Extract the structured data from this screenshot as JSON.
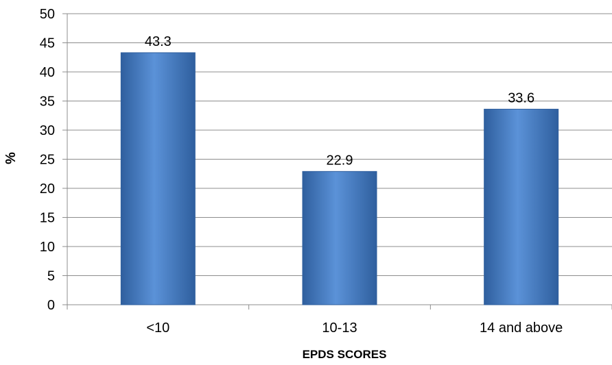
{
  "chart_data": {
    "type": "bar",
    "categories": [
      "<10",
      "10-13",
      "14 and above"
    ],
    "values": [
      43.3,
      22.9,
      33.6
    ],
    "data_labels": [
      "43.3",
      "22.9",
      "33.6"
    ],
    "title": "",
    "xlabel": "EPDS SCORES",
    "ylabel": "%",
    "ylim": [
      0,
      50
    ],
    "yticks": [
      0,
      5,
      10,
      15,
      20,
      25,
      30,
      35,
      40,
      45,
      50
    ],
    "grid": true,
    "legend": "none",
    "colors": {
      "bar": "#4a7ebb",
      "bar_light": "#5b92d8",
      "bar_dark": "#2f5f9e",
      "grid": "#8c8c8c",
      "axis": "#8c8c8c"
    }
  }
}
